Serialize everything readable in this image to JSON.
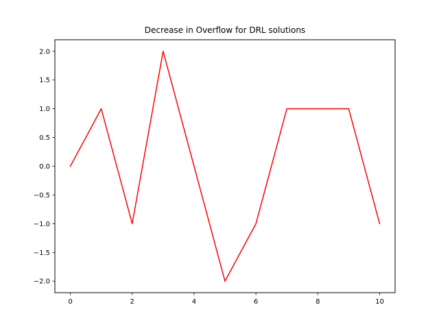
{
  "chart_data": {
    "type": "line",
    "title": "Decrease in Overflow for DRL solutions",
    "xlabel": "",
    "ylabel": "",
    "xlim": [
      -0.5,
      10.5
    ],
    "ylim": [
      -2.2,
      2.2
    ],
    "x_ticks": [
      0,
      2,
      4,
      6,
      8,
      10
    ],
    "y_ticks": [
      -2.0,
      -1.5,
      -1.0,
      -0.5,
      0.0,
      0.5,
      1.0,
      1.5,
      2.0
    ],
    "x_tick_labels": [
      "0",
      "2",
      "4",
      "6",
      "8",
      "10"
    ],
    "y_tick_labels": [
      "−2.0",
      "−1.5",
      "−1.0",
      "−0.5",
      "0.0",
      "0.5",
      "1.0",
      "1.5",
      "2.0"
    ],
    "grid": false,
    "series": [
      {
        "color": "#ff0000",
        "x": [
          0,
          1,
          2,
          3,
          4,
          5,
          6,
          7,
          8,
          9,
          10
        ],
        "values": [
          0,
          1,
          -1,
          2,
          0,
          -2,
          -1,
          1,
          1,
          1,
          -1
        ]
      }
    ]
  }
}
